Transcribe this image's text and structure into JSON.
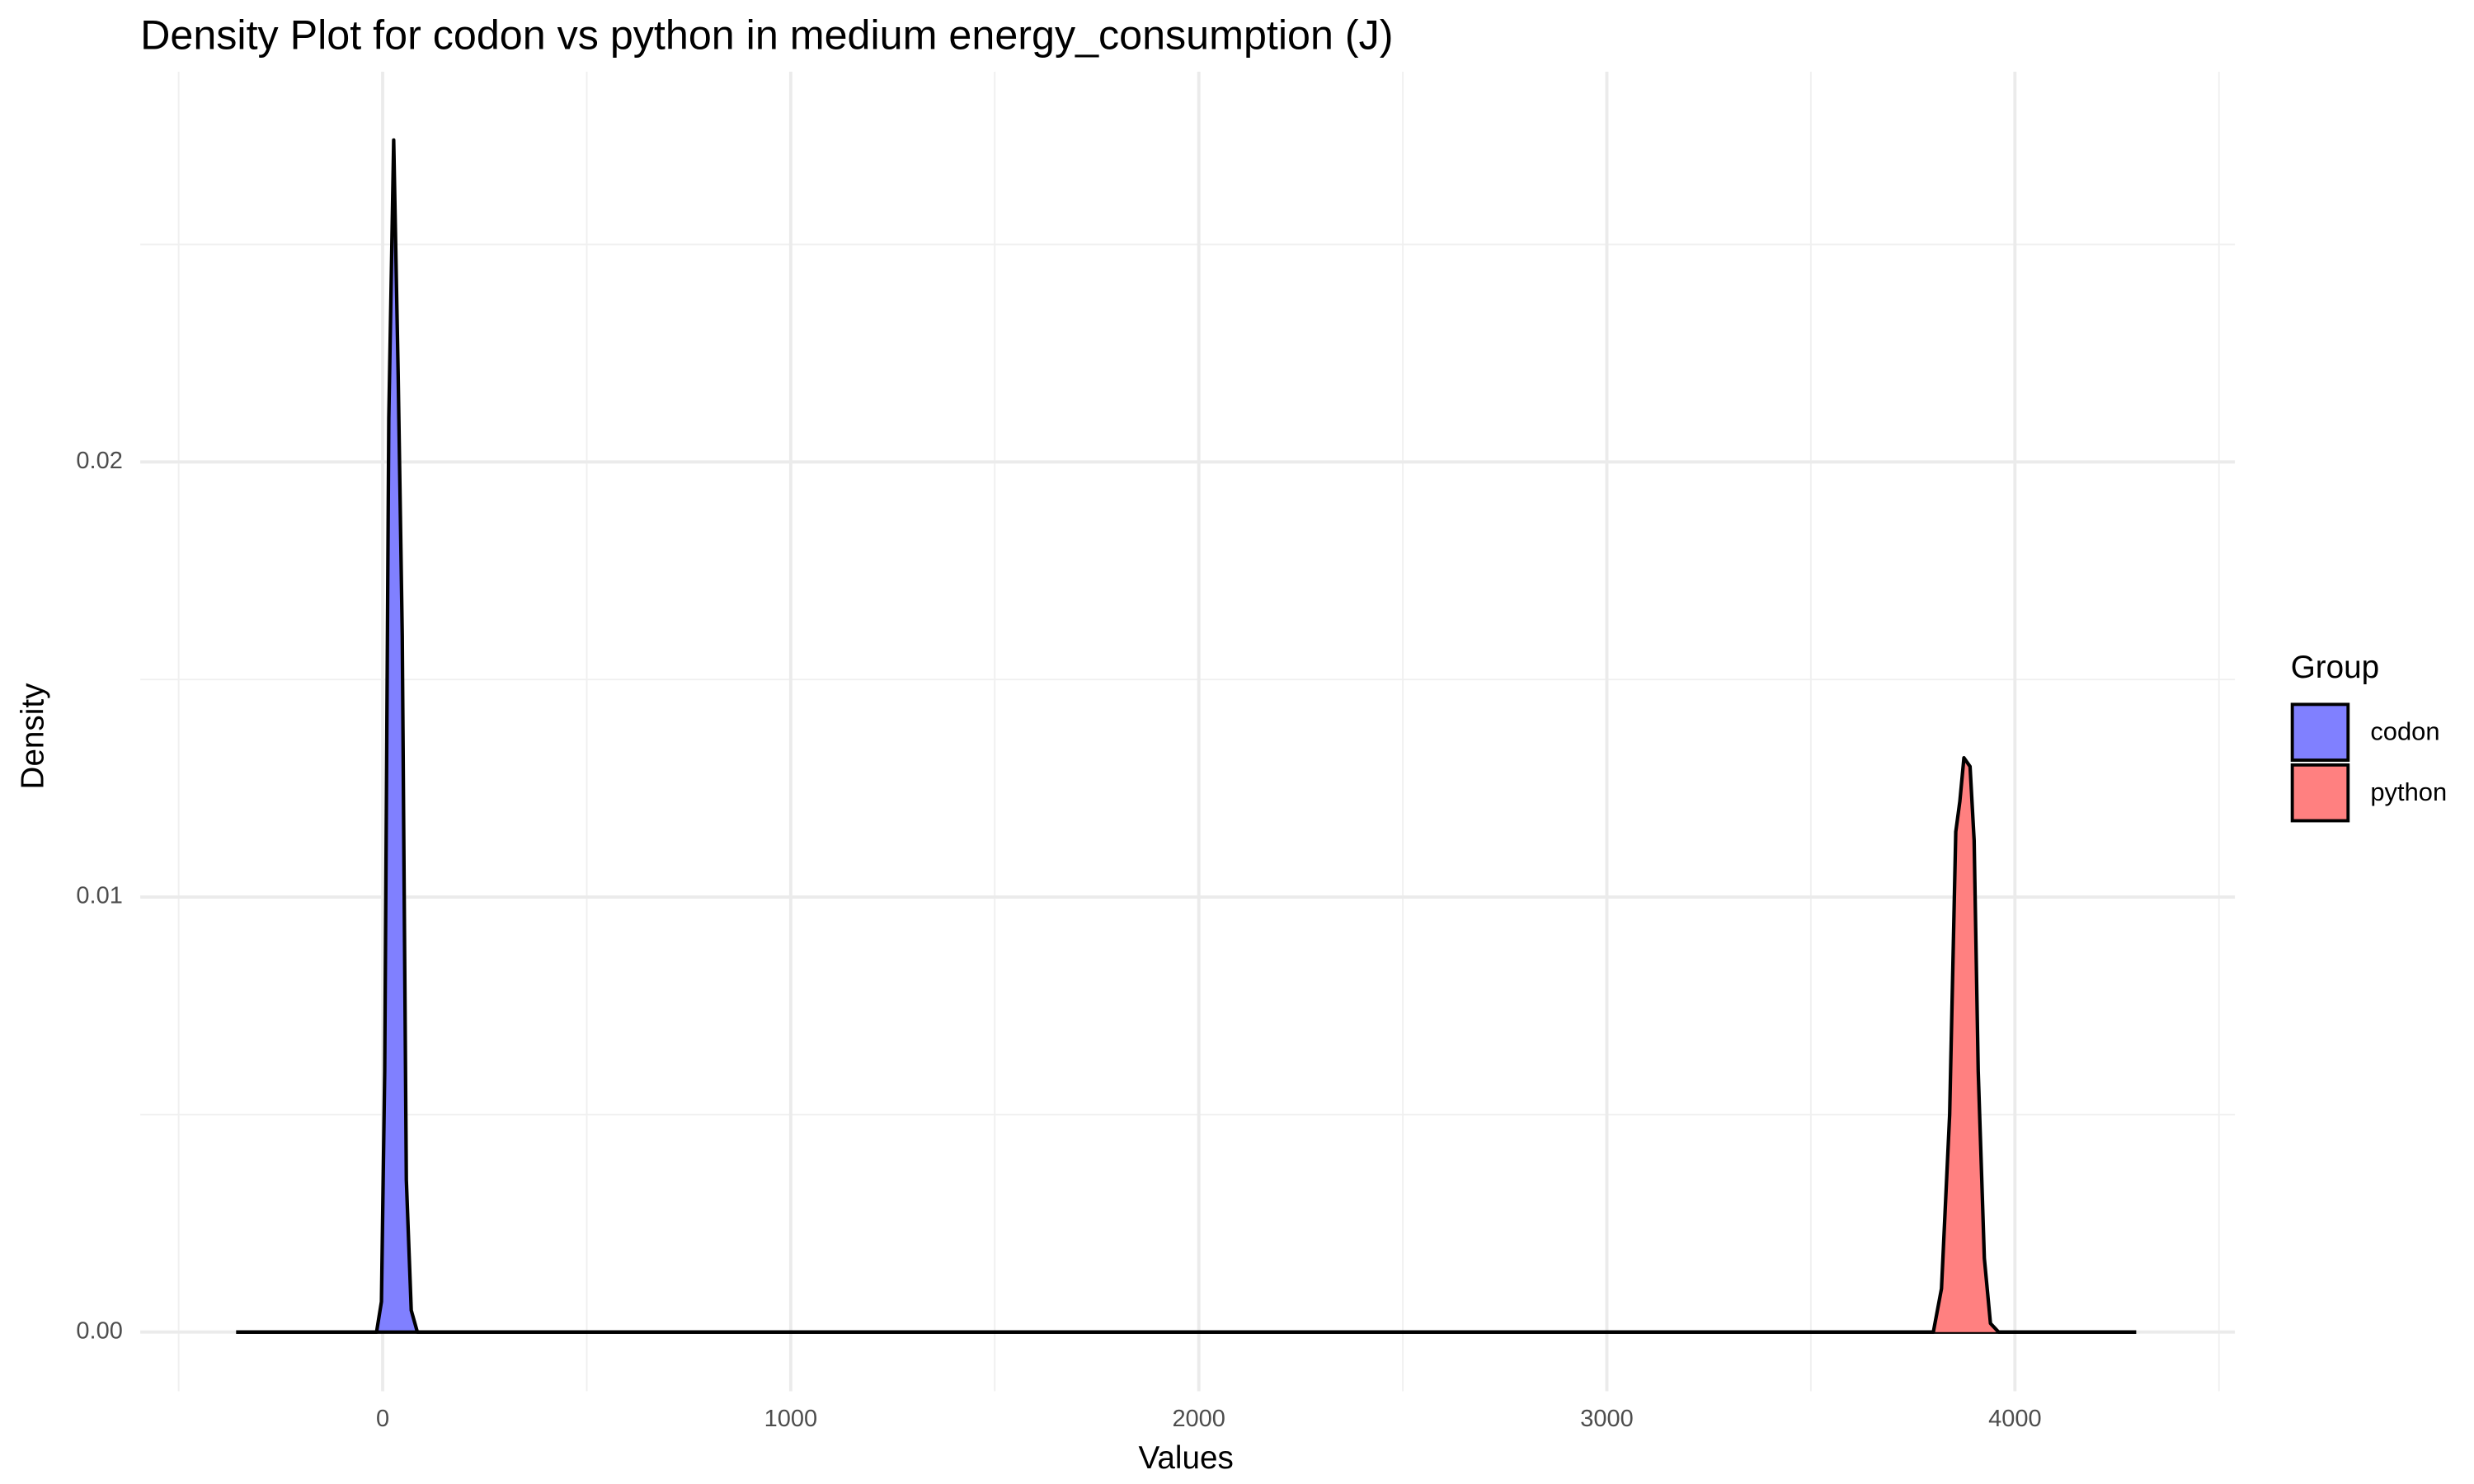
{
  "chart_data": {
    "type": "density",
    "title": "Density Plot for codon vs python in medium energy_consumption (J)",
    "x_label": "Values",
    "y_label": "Density",
    "legend_title": "Group",
    "legend_position": "right",
    "grid": true,
    "xlim": [
      -594,
      4539
    ],
    "ylim": [
      -0.00136,
      0.02897
    ],
    "xticks": [
      0,
      1000,
      2000,
      3000,
      4000
    ],
    "x_minor_ticks": [
      -500,
      500,
      1500,
      2500,
      3500,
      4500
    ],
    "yticks": [
      {
        "value": 0,
        "label": "0.00"
      },
      {
        "value": 0.01,
        "label": "0.01"
      },
      {
        "value": 0.02,
        "label": "0.02"
      }
    ],
    "y_minor_ticks": [
      0.005,
      0.015,
      0.025
    ],
    "series": [
      {
        "name": "codon",
        "color": "#8080ff",
        "x": [
          -359,
          -15,
          -3,
          5,
          15,
          27,
          38,
          48,
          58,
          70,
          85,
          4297
        ],
        "values": [
          0,
          0,
          0.0007,
          0.006,
          0.021,
          0.0274,
          0.022,
          0.016,
          0.0035,
          0.0005,
          0,
          0
        ]
      },
      {
        "name": "python",
        "color": "#ff8080",
        "x": [
          -359,
          3800,
          3820,
          3840,
          3855,
          3865,
          3875,
          3890,
          3900,
          3910,
          3925,
          3940,
          3960,
          4297
        ],
        "values": [
          0,
          0,
          0.001,
          0.005,
          0.0115,
          0.0122,
          0.0132,
          0.013,
          0.0113,
          0.006,
          0.0017,
          0.0002,
          0,
          0
        ]
      }
    ]
  }
}
